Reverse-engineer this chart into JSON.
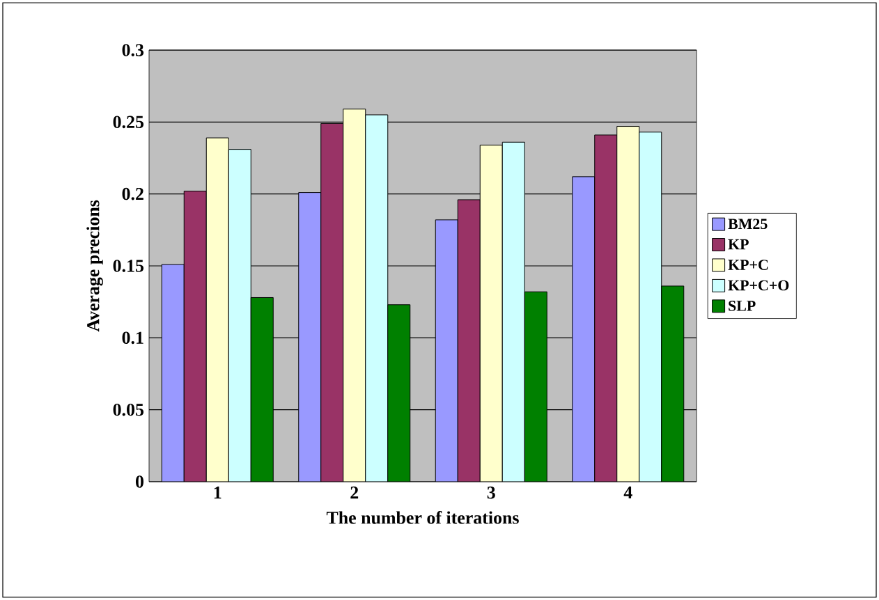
{
  "chart_data": {
    "type": "bar",
    "xlabel": "The number of iterations",
    "ylabel": "Average precions",
    "categories": [
      "1",
      "2",
      "3",
      "4"
    ],
    "series": [
      {
        "name": "BM25",
        "color": "#9999ff",
        "values": [
          0.151,
          0.201,
          0.182,
          0.212
        ]
      },
      {
        "name": "KP",
        "color": "#993366",
        "values": [
          0.202,
          0.249,
          0.196,
          0.241
        ]
      },
      {
        "name": "KP+C",
        "color": "#ffffcc",
        "values": [
          0.239,
          0.259,
          0.234,
          0.247
        ]
      },
      {
        "name": "KP+C+O",
        "color": "#ccffff",
        "values": [
          0.231,
          0.255,
          0.236,
          0.243
        ]
      },
      {
        "name": "SLP",
        "color": "#008000",
        "values": [
          0.128,
          0.123,
          0.132,
          0.136
        ]
      }
    ],
    "ylim": [
      0,
      0.3
    ],
    "yticks": [
      0,
      0.05,
      0.1,
      0.15,
      0.2,
      0.25,
      0.3
    ],
    "grid": "y",
    "legend": "right"
  }
}
